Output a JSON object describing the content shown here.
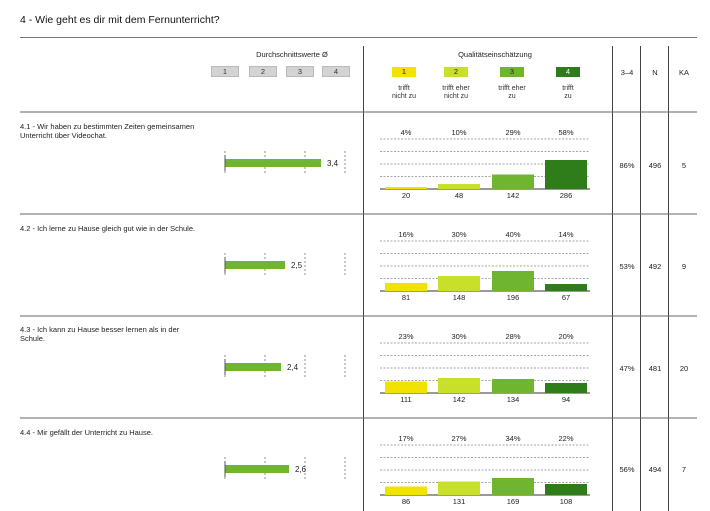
{
  "section_title": "4 - Wie geht es dir mit dem Fernunterricht?",
  "header": {
    "avg_title": "Durchschnittswerte Ø",
    "avg_scale": [
      "1",
      "2",
      "3",
      "4"
    ],
    "quality_title": "Qualitätseinschätzung",
    "categories": [
      {
        "num": "1",
        "label_line1": "trifft",
        "label_line2": "nicht zu",
        "color": "#f2e200"
      },
      {
        "num": "2",
        "label_line1": "trifft eher",
        "label_line2": "nicht zu",
        "color": "#c8e02a"
      },
      {
        "num": "3",
        "label_line1": "trifft eher",
        "label_line2": "zu",
        "color": "#6fb52f"
      },
      {
        "num": "4",
        "label_line1": "trifft",
        "label_line2": "zu",
        "color": "#2e7d1a"
      }
    ],
    "col_34": "3–4",
    "col_n": "N",
    "col_ka": "KA"
  },
  "chart_data": {
    "type": "bar",
    "categories": [
      "trifft nicht zu",
      "trifft eher nicht zu",
      "trifft eher zu",
      "trifft zu"
    ],
    "avg_range": [
      1,
      4
    ],
    "questions": [
      {
        "text_line1": "4.1 - Wir haben zu bestimmten Zeiten gemeinsamen",
        "text_line2": "Unterricht über Videochat.",
        "avg": 3.4,
        "avg_label": "3,4",
        "percents": [
          "4%",
          "10%",
          "29%",
          "58%"
        ],
        "percent_values": [
          4,
          10,
          29,
          58
        ],
        "counts": [
          20,
          48,
          142,
          286
        ],
        "share_34": "86%",
        "n": "496",
        "ka": "5"
      },
      {
        "text_line1": "4.2 - Ich lerne zu Hause gleich gut wie in der Schule.",
        "text_line2": "",
        "avg": 2.5,
        "avg_label": "2,5",
        "percents": [
          "16%",
          "30%",
          "40%",
          "14%"
        ],
        "percent_values": [
          16,
          30,
          40,
          14
        ],
        "counts": [
          81,
          148,
          196,
          67
        ],
        "share_34": "53%",
        "n": "492",
        "ka": "9"
      },
      {
        "text_line1": "4.3 - Ich kann zu Hause besser lernen als in der",
        "text_line2": "Schule.",
        "avg": 2.4,
        "avg_label": "2,4",
        "percents": [
          "23%",
          "30%",
          "28%",
          "20%"
        ],
        "percent_values": [
          23,
          30,
          28,
          20
        ],
        "counts": [
          111,
          142,
          134,
          94
        ],
        "share_34": "47%",
        "n": "481",
        "ka": "20"
      },
      {
        "text_line1": "4.4 - Mir gefällt der Unterricht zu Hause.",
        "text_line2": "",
        "avg": 2.6,
        "avg_label": "2,6",
        "percents": [
          "17%",
          "27%",
          "34%",
          "22%"
        ],
        "percent_values": [
          17,
          27,
          34,
          22
        ],
        "counts": [
          86,
          131,
          169,
          108
        ],
        "share_34": "56%",
        "n": "494",
        "ka": "7"
      }
    ]
  }
}
